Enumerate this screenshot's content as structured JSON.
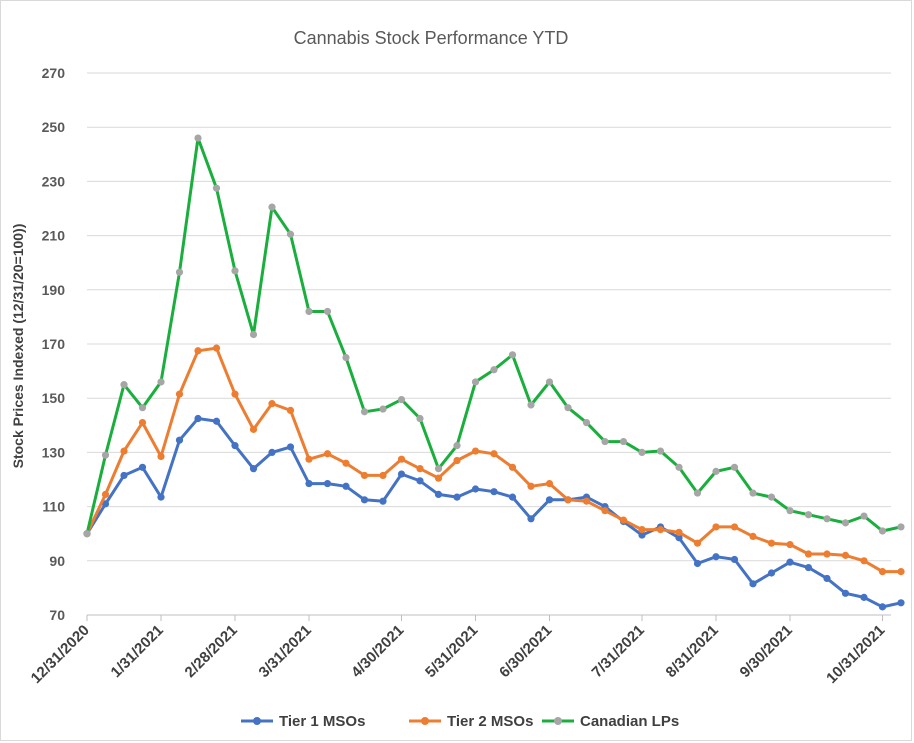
{
  "chart_data": {
    "type": "line",
    "title": "Cannabis Stock Performance YTD",
    "ylabel": "Stock Prices Indexed (12/31/20=100))",
    "xlabel": "",
    "ylim": [
      70,
      270
    ],
    "yticks": [
      70,
      90,
      110,
      130,
      150,
      170,
      190,
      210,
      230,
      250,
      270
    ],
    "x_tick_labels": [
      "12/31/2020",
      "1/31/2021",
      "2/28/2021",
      "3/31/2021",
      "4/30/2021",
      "5/31/2021",
      "6/30/2021",
      "7/31/2021",
      "8/31/2021",
      "9/30/2021",
      "10/31/2021"
    ],
    "x_tick_index": [
      0,
      4,
      8,
      12,
      17,
      21,
      25,
      30,
      34,
      38,
      43
    ],
    "grid": "horizontal",
    "legend_position": "bottom",
    "series": [
      {
        "name": "Tier 1 MSOs",
        "color": "#4472c4",
        "marker_color": "#4472c4",
        "values": [
          100,
          111,
          121.5,
          124.5,
          113.5,
          134.5,
          142.5,
          141.5,
          132.5,
          124,
          130,
          132,
          118.5,
          118.5,
          117.5,
          112.5,
          112,
          122,
          119.5,
          114.5,
          113.5,
          116.5,
          115.5,
          113.5,
          105.5,
          112.5,
          112.5,
          113.5,
          110,
          104.5,
          99.5,
          102.5,
          98.5,
          89,
          91.5,
          90.5,
          81.5,
          85.5,
          89.5,
          87.5,
          83.5,
          78,
          76.5,
          73,
          74.5
        ]
      },
      {
        "name": "Tier 2 MSOs",
        "color": "#ed7d31",
        "marker_color": "#ed7d31",
        "values": [
          100,
          114.5,
          130.5,
          141,
          128.5,
          151.5,
          167.5,
          168.5,
          151.5,
          138.5,
          148,
          145.5,
          127.5,
          129.5,
          126,
          121.5,
          121.5,
          127.5,
          124,
          120.5,
          127,
          130.5,
          129.5,
          124.5,
          117.5,
          118.5,
          112.5,
          112,
          108.5,
          105,
          101.5,
          101.5,
          100.5,
          96.5,
          102.5,
          102.5,
          99,
          96.5,
          96,
          92.5,
          92.5,
          92,
          90,
          86,
          86
        ]
      },
      {
        "name": "Canadian LPs",
        "color": "#1aaf3d",
        "marker_color": "#a6a6a6",
        "values": [
          100,
          129,
          155,
          146.5,
          156,
          196.5,
          246,
          227.5,
          197,
          173.5,
          220.5,
          210.5,
          182,
          182,
          165,
          145,
          146,
          149.5,
          142.5,
          124,
          132.5,
          156,
          160.5,
          166,
          147.5,
          156,
          146.5,
          141,
          134,
          134,
          130,
          130.5,
          124.5,
          115,
          123,
          124.5,
          115,
          113.5,
          108.5,
          107,
          105.5,
          104,
          106.5,
          101,
          102.5
        ]
      }
    ]
  }
}
